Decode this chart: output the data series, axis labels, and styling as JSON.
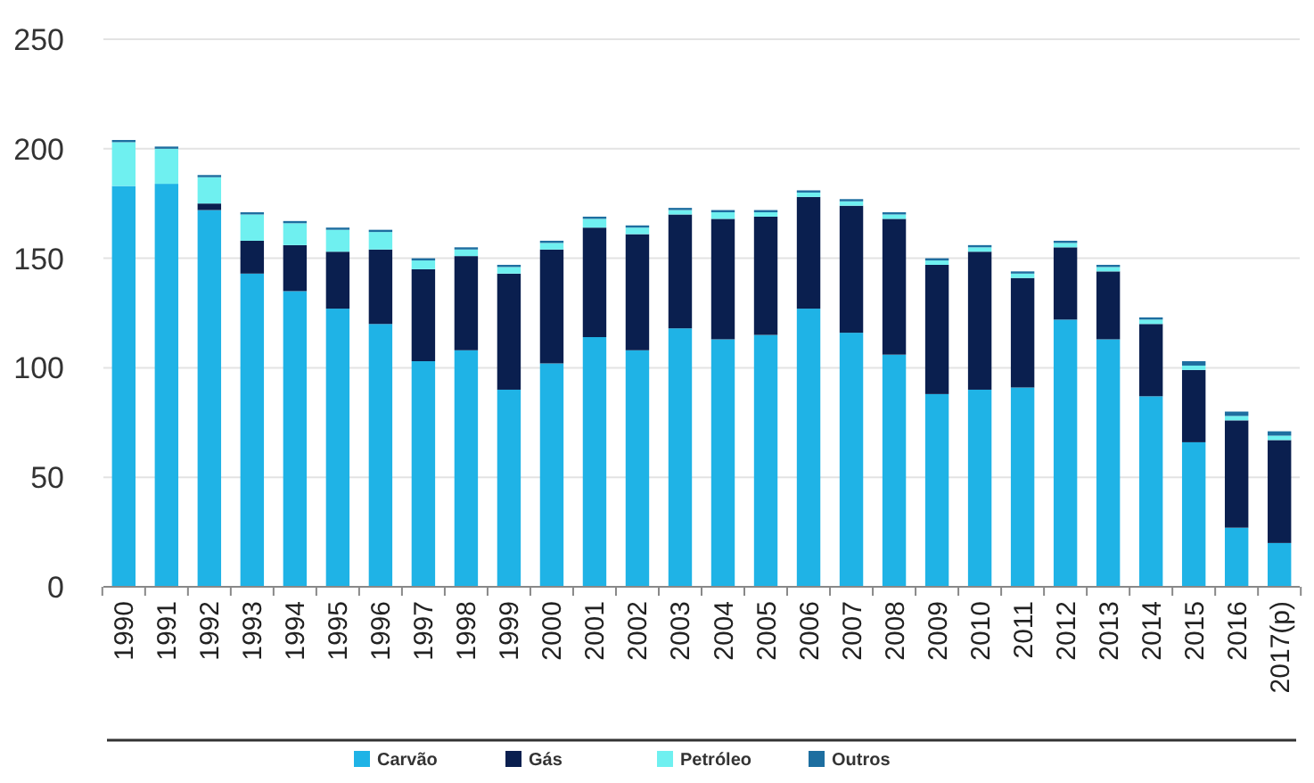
{
  "chart_data": {
    "type": "bar",
    "stacked": true,
    "categories": [
      "1990",
      "1991",
      "1992",
      "1993",
      "1994",
      "1995",
      "1996",
      "1997",
      "1998",
      "1999",
      "2000",
      "2001",
      "2002",
      "2003",
      "2004",
      "2005",
      "2006",
      "2007",
      "2008",
      "2009",
      "2010",
      "2011",
      "2012",
      "2013",
      "2014",
      "2015",
      "2016",
      "2017(p)"
    ],
    "series": [
      {
        "name": "Carvão",
        "color": "#1fb3e6",
        "values": [
          183,
          184,
          172,
          143,
          135,
          127,
          120,
          103,
          108,
          90,
          102,
          114,
          108,
          118,
          113,
          115,
          127,
          116,
          106,
          88,
          90,
          91,
          122,
          113,
          87,
          66,
          27,
          20
        ]
      },
      {
        "name": "Gás",
        "color": "#0a1f4f",
        "values": [
          0,
          0,
          3,
          15,
          21,
          26,
          34,
          42,
          43,
          53,
          52,
          50,
          53,
          52,
          55,
          54,
          51,
          58,
          62,
          59,
          63,
          50,
          33,
          31,
          33,
          33,
          49,
          47
        ]
      },
      {
        "name": "Petróleo",
        "color": "#6ff0f0",
        "values": [
          20,
          16,
          12,
          12,
          10,
          10,
          8,
          4,
          3,
          3,
          3,
          4,
          3,
          2,
          3,
          2,
          2,
          2,
          2,
          2,
          2,
          2,
          2,
          2,
          2,
          2,
          2,
          2
        ]
      },
      {
        "name": "Outros",
        "color": "#1d6ea0",
        "values": [
          1,
          1,
          1,
          1,
          1,
          1,
          1,
          1,
          1,
          1,
          1,
          1,
          1,
          1,
          1,
          1,
          1,
          1,
          1,
          1,
          1,
          1,
          1,
          1,
          1,
          2,
          2,
          2
        ]
      }
    ],
    "ylim": [
      0,
      250
    ],
    "yticks": [
      0,
      50,
      100,
      150,
      200,
      250
    ],
    "grid": "y",
    "legend": "bottom"
  }
}
